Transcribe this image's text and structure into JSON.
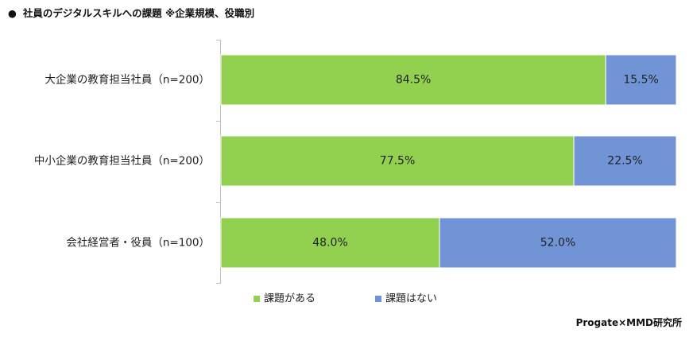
{
  "title": "社員のデジタルスキルへの課題 ※企業規模、役職別",
  "credit": "Progate×MMD研究所",
  "colors": {
    "has_issue": "#92d050",
    "no_issue": "#7094d6",
    "axis": "#bfbfbf"
  },
  "chart_data": {
    "type": "bar",
    "orientation": "horizontal",
    "stacked": true,
    "percent": true,
    "categories": [
      "大企業の教育担当社員（n=200）",
      "中小企業の教育担当社員（n=200）",
      "会社経営者・役員（n=100）"
    ],
    "series": [
      {
        "name": "課題がある",
        "values": [
          84.5,
          77.5,
          48.0
        ],
        "labels": [
          "84.5%",
          "77.5%",
          "48.0%"
        ]
      },
      {
        "name": "課題はない",
        "values": [
          15.5,
          22.5,
          52.0
        ],
        "labels": [
          "15.5%",
          "22.5%",
          "52.0%"
        ]
      }
    ],
    "xlim": [
      0,
      100
    ],
    "legend": "bottom"
  }
}
